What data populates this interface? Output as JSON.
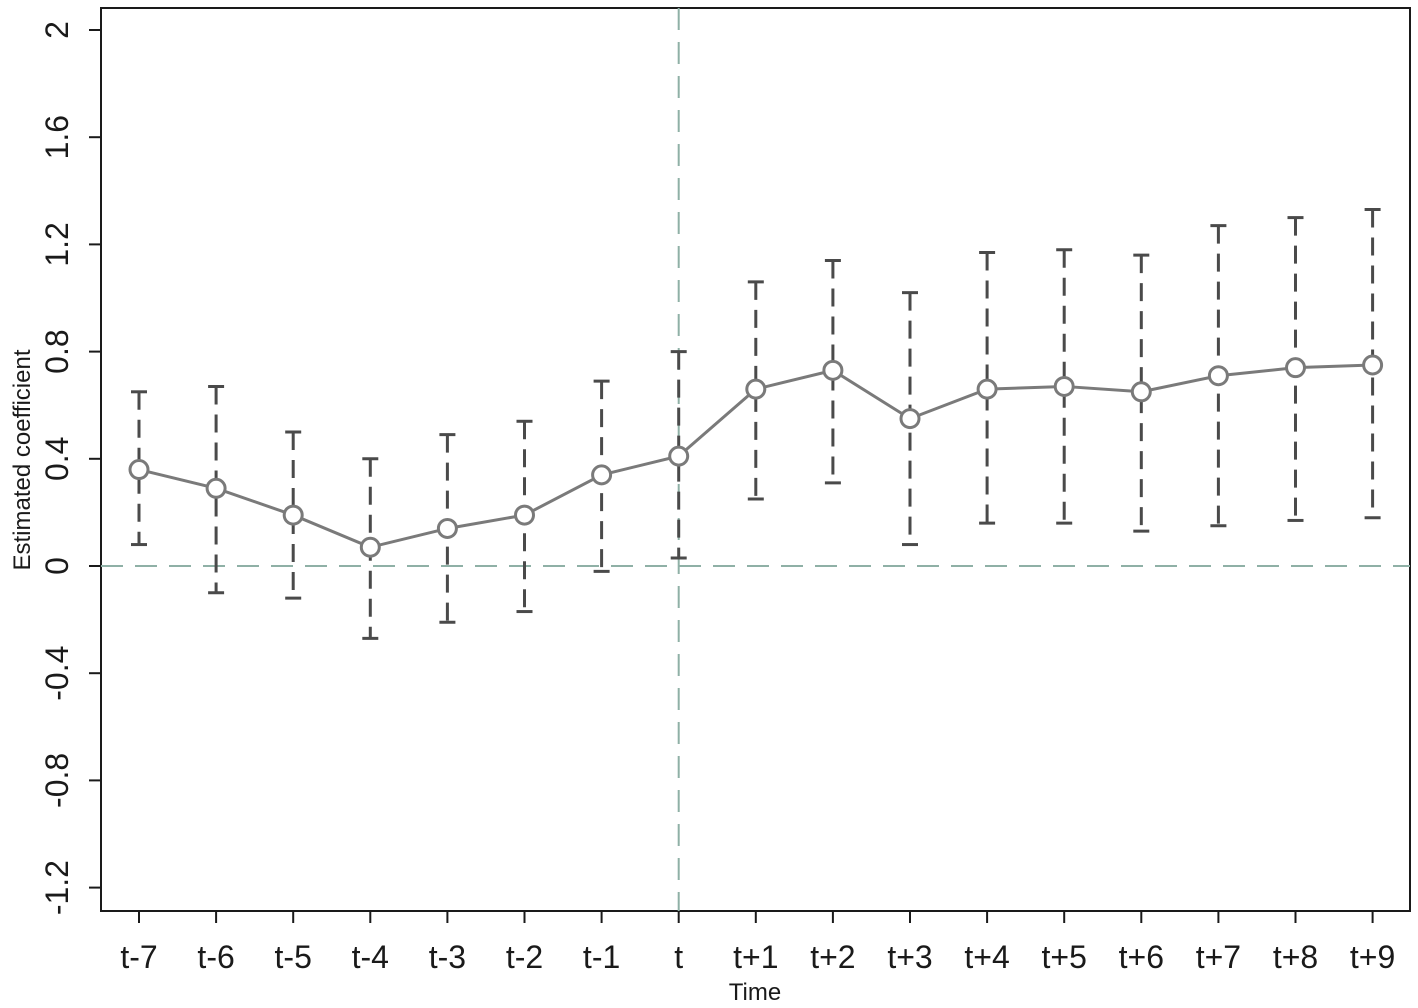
{
  "chart_data": {
    "type": "line",
    "title": "",
    "xlabel": "Time",
    "ylabel": "Estimated coefficient",
    "categories": [
      "t-7",
      "t-6",
      "t-5",
      "t-4",
      "t-3",
      "t-2",
      "t-1",
      "t",
      "t+1",
      "t+2",
      "t+3",
      "t+4",
      "t+5",
      "t+6",
      "t+7",
      "t+8",
      "t+9"
    ],
    "series": [
      {
        "values": [
          0.36,
          0.29,
          0.19,
          0.07,
          0.14,
          0.19,
          0.34,
          0.41,
          0.66,
          0.73,
          0.55,
          0.66,
          0.67,
          0.65,
          0.71,
          0.74,
          0.75
        ],
        "ci_lower": [
          0.08,
          -0.1,
          -0.12,
          -0.27,
          -0.21,
          -0.17,
          -0.02,
          0.03,
          0.25,
          0.31,
          0.08,
          0.16,
          0.16,
          0.13,
          0.15,
          0.17,
          0.18
        ],
        "ci_upper": [
          0.65,
          0.67,
          0.5,
          0.4,
          0.49,
          0.54,
          0.69,
          0.8,
          1.06,
          1.14,
          1.02,
          1.17,
          1.18,
          1.16,
          1.27,
          1.3,
          1.33
        ]
      }
    ],
    "ylim": [
      -1.35,
      2.1
    ],
    "yticks": [
      -1.2,
      -0.8,
      -0.4,
      0,
      0.4,
      0.8,
      1.2,
      1.6,
      2
    ],
    "ytick_labels": [
      "-1.2",
      "-0.8",
      "-0.4",
      "0",
      "0.4",
      "0.8",
      "1.2",
      "1.6",
      "2"
    ],
    "reference_lines": {
      "horizontal_y": 0,
      "vertical_x": "t"
    },
    "grid": false,
    "colors": {
      "series": "#7a7a7a",
      "ci": "#4a4a4a",
      "reference": "#8fb0a6",
      "axis": "#1a1a1a"
    }
  }
}
